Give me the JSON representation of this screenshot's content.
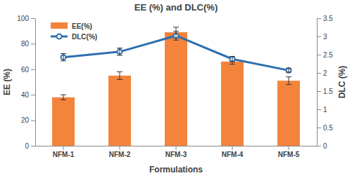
{
  "chart_data": {
    "type": "bar",
    "title": "EE (%) and DLC(%)",
    "x_label": "Formulations",
    "y_label": "EE (%)",
    "y2_label": "DLC (%)",
    "categories": [
      "NFM-1",
      "NFM-2",
      "NFM-3",
      "NFM-4",
      "NFM-5"
    ],
    "series": [
      {
        "name": "EE(%)",
        "type": "bar",
        "color": "#f4843c",
        "values": [
          38,
          55,
          89,
          66,
          51
        ],
        "errors": [
          2,
          3,
          4,
          2,
          3
        ]
      },
      {
        "name": "DLC(%)",
        "type": "line",
        "axis": "y2",
        "color": "#2e6fb0",
        "marker": "circle",
        "values": [
          2.43,
          2.58,
          3.02,
          2.38,
          2.07
        ],
        "errors": [
          0.1,
          0.1,
          0.12,
          0.07,
          0.05
        ]
      }
    ],
    "ylim": [
      0,
      100
    ],
    "yticks": [
      0,
      20,
      40,
      60,
      80,
      100
    ],
    "y2lim": [
      0,
      3.5
    ],
    "y2ticks": [
      0,
      0.5,
      1,
      1.5,
      2,
      2.5,
      3,
      3.5
    ],
    "legend": "upper left",
    "grid": false
  }
}
